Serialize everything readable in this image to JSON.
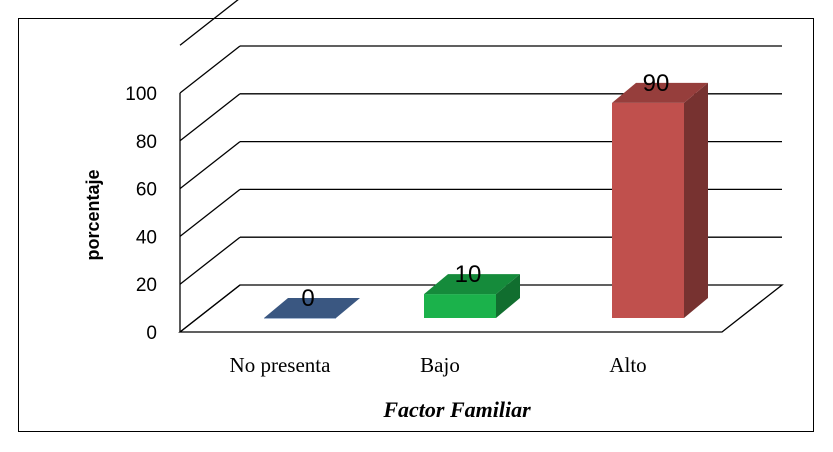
{
  "chart_data": {
    "type": "bar",
    "style": "3d-column",
    "categories": [
      "No presenta",
      "Bajo",
      "Alto"
    ],
    "values": [
      0,
      10,
      90
    ],
    "data_labels": [
      "0",
      "10",
      "90"
    ],
    "colors": [
      "#4A6FA5",
      "#1BB24B",
      "#C0504D"
    ],
    "xlabel": "Factor Familiar",
    "ylabel": "porcentaje",
    "ylim": [
      0,
      100
    ],
    "yticks": [
      "0",
      "20",
      "40",
      "60",
      "80",
      "100"
    ],
    "grid": true,
    "legend": "none"
  }
}
